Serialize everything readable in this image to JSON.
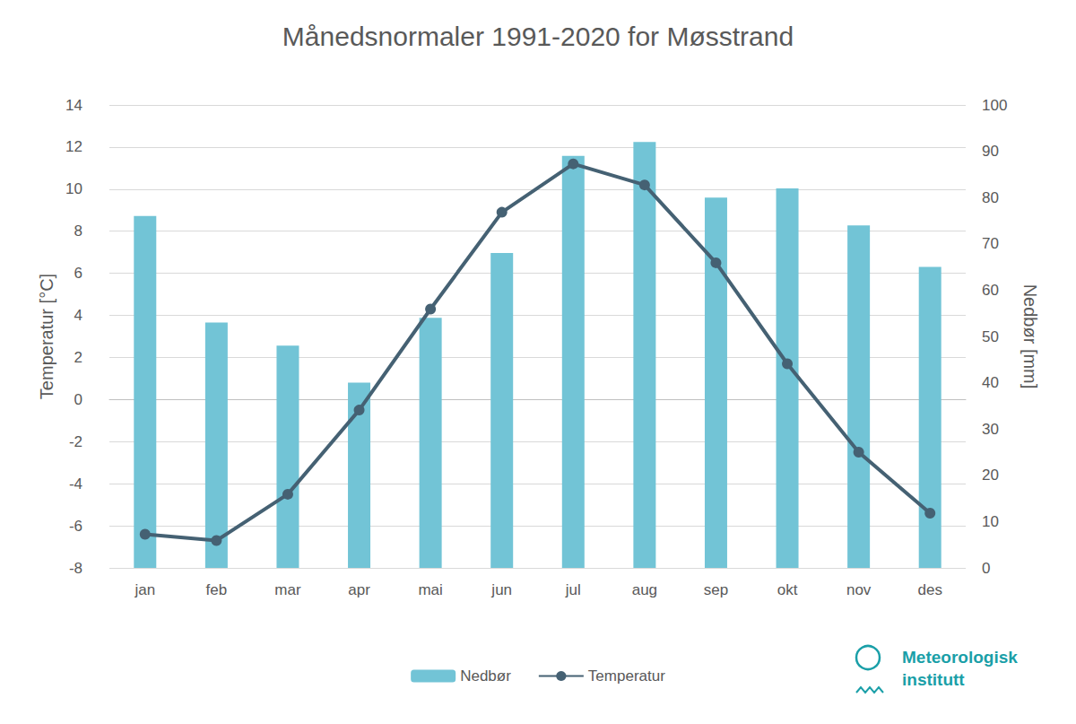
{
  "chart_data": {
    "type": "bar",
    "title": "Månedsnormaler 1991-2020 for Møsstrand",
    "ylabel": "Temperatur [°C]",
    "y2label": "Nedbør [mm]",
    "annotation": "Meteorologisk institutt",
    "categories": [
      "jan",
      "feb",
      "mar",
      "apr",
      "mai",
      "jun",
      "jul",
      "aug",
      "sep",
      "okt",
      "nov",
      "des"
    ],
    "series": [
      {
        "name": "Nedbør",
        "type": "bar",
        "axis": "y2",
        "color": "#72c4d6",
        "values": [
          76,
          53,
          48,
          40,
          54,
          68,
          89,
          92,
          80,
          82,
          74,
          65
        ]
      },
      {
        "name": "Temperatur",
        "type": "line",
        "color": "#456173",
        "marker": "circle",
        "values": [
          -6.4,
          -6.7,
          -4.5,
          -0.5,
          4.3,
          8.9,
          11.2,
          10.2,
          6.5,
          1.7,
          -2.5,
          -5.4
        ]
      }
    ],
    "ylim": [
      -8,
      14
    ],
    "yticks": [
      -8,
      -6,
      -4,
      -2,
      0,
      2,
      4,
      6,
      8,
      10,
      12,
      14
    ],
    "y2lim": [
      0,
      100
    ],
    "y2ticks": [
      0,
      10,
      20,
      30,
      40,
      50,
      60,
      70,
      80,
      90,
      100
    ],
    "grid": true,
    "legend": "bottom"
  }
}
